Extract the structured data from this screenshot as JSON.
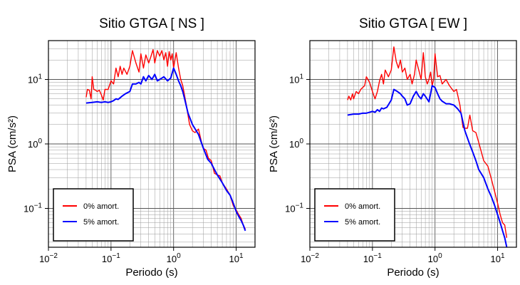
{
  "figure": {
    "background": "#ffffff"
  },
  "chart_data": [
    {
      "type": "line",
      "title": "Sitio GTGA [ NS ]",
      "xlabel": "Periodo (s)",
      "ylabel": "PSA (cm/s²)",
      "xscale": "log",
      "yscale": "log",
      "xlim": [
        0.01,
        20
      ],
      "ylim": [
        0.025,
        40
      ],
      "grid": true,
      "legend_position": "bottom-left",
      "x_ticks": [
        {
          "value": 0.01,
          "base": "10",
          "exp": "−2"
        },
        {
          "value": 0.1,
          "base": "10",
          "exp": "−1"
        },
        {
          "value": 1,
          "base": "10",
          "exp": "0"
        },
        {
          "value": 10,
          "base": "10",
          "exp": "1"
        }
      ],
      "y_ticks": [
        {
          "value": 0.1,
          "base": "10",
          "exp": "−1"
        },
        {
          "value": 1,
          "base": "10",
          "exp": "0"
        },
        {
          "value": 10,
          "base": "10",
          "exp": "1"
        }
      ],
      "series": [
        {
          "name": "0% amort.",
          "color": "#ff0000",
          "x": [
            0.04,
            0.042,
            0.045,
            0.048,
            0.05,
            0.053,
            0.057,
            0.06,
            0.065,
            0.07,
            0.075,
            0.08,
            0.09,
            0.1,
            0.11,
            0.12,
            0.13,
            0.14,
            0.15,
            0.16,
            0.18,
            0.2,
            0.22,
            0.25,
            0.28,
            0.3,
            0.33,
            0.36,
            0.4,
            0.43,
            0.47,
            0.5,
            0.55,
            0.6,
            0.65,
            0.7,
            0.75,
            0.8,
            0.85,
            0.9,
            0.95,
            1.0,
            1.1,
            1.2,
            1.3,
            1.4,
            1.6,
            1.8,
            2.0,
            2.2,
            2.5,
            2.8,
            3.0,
            3.3,
            3.6,
            4.0,
            4.5,
            5.0,
            5.5,
            6.0,
            7.0,
            8.0,
            9.0,
            10.0,
            11.0,
            12.0,
            13.0,
            14.0
          ],
          "y": [
            5.3,
            7.0,
            6.8,
            5.0,
            11.0,
            7.0,
            6.8,
            6.5,
            6.8,
            5.8,
            4.8,
            7.0,
            7.0,
            9.5,
            8.5,
            15.0,
            11.0,
            16.0,
            12.0,
            15.0,
            12.0,
            16.0,
            28.0,
            18.0,
            13.0,
            25.0,
            15.0,
            24.0,
            18.0,
            22.0,
            29.0,
            18.0,
            28.0,
            23.0,
            28.0,
            20.0,
            26.0,
            16.0,
            27.0,
            20.0,
            25.0,
            15.0,
            26.0,
            15.0,
            10.0,
            8.0,
            4.0,
            2.0,
            1.6,
            1.5,
            1.7,
            1.05,
            0.85,
            0.8,
            0.6,
            0.55,
            0.35,
            0.33,
            0.32,
            0.25,
            0.2,
            0.16,
            0.11,
            0.095,
            0.08,
            0.07,
            0.055,
            0.048
          ]
        },
        {
          "name": "5% amort.",
          "color": "#0000ff",
          "x": [
            0.04,
            0.05,
            0.06,
            0.07,
            0.08,
            0.09,
            0.1,
            0.11,
            0.12,
            0.13,
            0.14,
            0.15,
            0.17,
            0.2,
            0.22,
            0.25,
            0.28,
            0.3,
            0.33,
            0.36,
            0.4,
            0.45,
            0.5,
            0.55,
            0.6,
            0.65,
            0.7,
            0.8,
            0.9,
            1.0,
            1.1,
            1.2,
            1.3,
            1.4,
            1.5,
            1.7,
            2.0,
            2.5,
            3.0,
            3.5,
            4.0,
            4.5,
            5.0,
            6.0,
            7.0,
            8.0,
            9.0,
            10.0,
            11.0,
            12.0,
            13.0,
            14.0
          ],
          "y": [
            4.3,
            4.4,
            4.5,
            4.4,
            4.5,
            4.4,
            4.5,
            4.7,
            5.0,
            4.9,
            5.2,
            5.5,
            6.0,
            6.5,
            8.5,
            8.5,
            9.0,
            8.5,
            11.0,
            9.5,
            11.5,
            10.0,
            12.0,
            9.5,
            10.0,
            10.5,
            11.0,
            9.5,
            10.5,
            15.0,
            12.0,
            9.5,
            8.0,
            6.5,
            5.0,
            3.0,
            2.0,
            1.4,
            0.85,
            0.58,
            0.5,
            0.4,
            0.33,
            0.25,
            0.19,
            0.16,
            0.12,
            0.09,
            0.075,
            0.065,
            0.055,
            0.045
          ]
        }
      ]
    },
    {
      "type": "line",
      "title": "Sitio GTGA [ EW ]",
      "xlabel": "Periodo (s)",
      "ylabel": "PSA (cm/s²)",
      "xscale": "log",
      "yscale": "log",
      "xlim": [
        0.01,
        20
      ],
      "ylim": [
        0.025,
        40
      ],
      "grid": true,
      "legend_position": "bottom-left",
      "x_ticks": [
        {
          "value": 0.01,
          "base": "10",
          "exp": "−2"
        },
        {
          "value": 0.1,
          "base": "10",
          "exp": "−1"
        },
        {
          "value": 1,
          "base": "10",
          "exp": "0"
        },
        {
          "value": 10,
          "base": "10",
          "exp": "1"
        }
      ],
      "y_ticks": [
        {
          "value": 0.1,
          "base": "10",
          "exp": "−1"
        },
        {
          "value": 1,
          "base": "10",
          "exp": "0"
        },
        {
          "value": 10,
          "base": "10",
          "exp": "1"
        }
      ],
      "series": [
        {
          "name": "0% amort.",
          "color": "#ff0000",
          "x": [
            0.04,
            0.042,
            0.045,
            0.048,
            0.05,
            0.055,
            0.06,
            0.065,
            0.07,
            0.075,
            0.08,
            0.09,
            0.1,
            0.11,
            0.12,
            0.13,
            0.14,
            0.15,
            0.16,
            0.18,
            0.2,
            0.22,
            0.24,
            0.26,
            0.28,
            0.3,
            0.33,
            0.36,
            0.4,
            0.43,
            0.47,
            0.5,
            0.55,
            0.6,
            0.65,
            0.7,
            0.75,
            0.8,
            0.85,
            0.9,
            0.95,
            1.0,
            1.1,
            1.2,
            1.3,
            1.5,
            1.7,
            2.0,
            2.2,
            2.5,
            2.8,
            3.0,
            3.3,
            3.6,
            4.0,
            4.5,
            5.0,
            5.5,
            6.0,
            7.0,
            8.0,
            9.0,
            10.0,
            11.0,
            12.0,
            13.0,
            14.0
          ],
          "y": [
            4.8,
            5.5,
            4.8,
            6.0,
            5.0,
            6.5,
            6.0,
            7.0,
            7.5,
            8.0,
            11.0,
            9.0,
            6.5,
            5.0,
            6.5,
            9.5,
            12.0,
            8.5,
            14.0,
            11.0,
            14.0,
            32.0,
            19.0,
            15.0,
            20.0,
            13.0,
            15.0,
            10.0,
            12.0,
            8.5,
            12.0,
            20.0,
            14.0,
            10.0,
            26.0,
            11.0,
            8.5,
            10.0,
            13.0,
            8.0,
            10.0,
            25.0,
            11.0,
            11.5,
            8.5,
            10.0,
            8.0,
            6.5,
            7.0,
            4.0,
            1.8,
            1.75,
            1.75,
            2.8,
            1.6,
            1.5,
            1.05,
            0.75,
            0.55,
            0.45,
            0.28,
            0.18,
            0.12,
            0.08,
            0.06,
            0.055,
            0.035
          ]
        },
        {
          "name": "5% amort.",
          "color": "#0000ff",
          "x": [
            0.04,
            0.05,
            0.06,
            0.07,
            0.08,
            0.09,
            0.1,
            0.11,
            0.12,
            0.13,
            0.14,
            0.15,
            0.17,
            0.2,
            0.22,
            0.25,
            0.28,
            0.3,
            0.33,
            0.36,
            0.4,
            0.45,
            0.5,
            0.55,
            0.6,
            0.65,
            0.7,
            0.8,
            0.9,
            1.0,
            1.1,
            1.2,
            1.3,
            1.5,
            1.7,
            2.0,
            2.3,
            2.6,
            3.0,
            3.5,
            4.0,
            4.5,
            5.0,
            6.0,
            7.0,
            8.0,
            9.0,
            10.0,
            11.0,
            12.0,
            13.0,
            14.0
          ],
          "y": [
            2.8,
            2.9,
            2.9,
            3.0,
            3.0,
            3.1,
            3.2,
            3.1,
            3.4,
            3.2,
            3.6,
            3.5,
            3.7,
            4.8,
            7.0,
            6.5,
            6.0,
            5.5,
            5.0,
            4.0,
            4.2,
            5.5,
            6.5,
            5.5,
            5.0,
            6.0,
            5.5,
            4.5,
            8.0,
            7.5,
            6.0,
            5.0,
            4.6,
            4.2,
            4.2,
            4.0,
            3.5,
            3.0,
            1.6,
            1.05,
            0.75,
            0.55,
            0.4,
            0.3,
            0.2,
            0.15,
            0.11,
            0.08,
            0.06,
            0.045,
            0.035,
            0.025
          ]
        }
      ]
    }
  ]
}
